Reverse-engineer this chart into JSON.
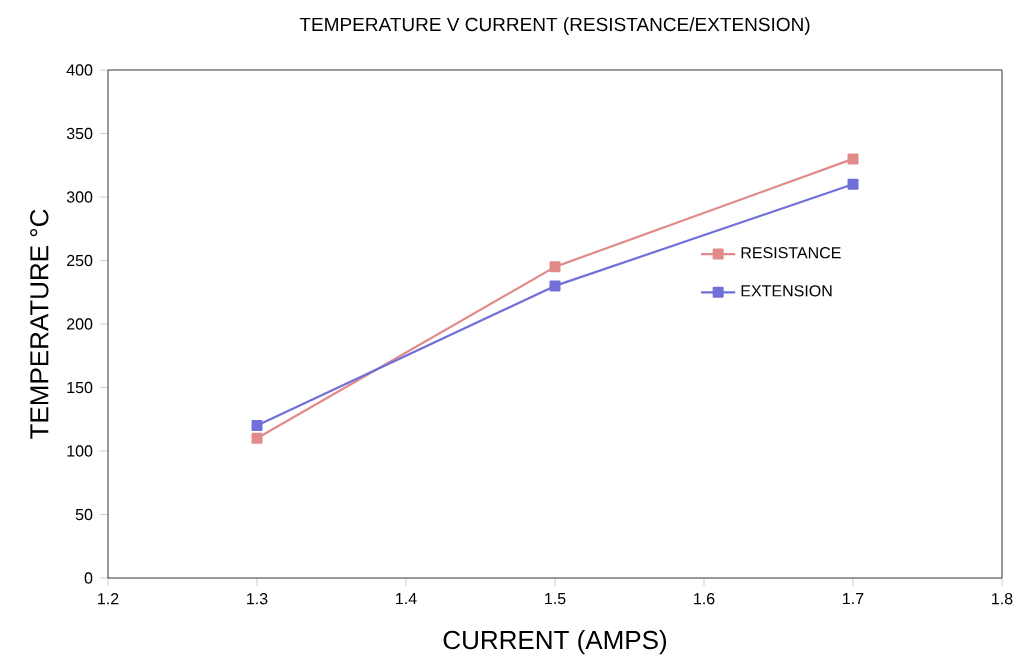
{
  "chart_data": {
    "type": "line",
    "title": "TEMPERATURE V CURRENT  (RESISTANCE/EXTENSION)",
    "xlabel": "CURRENT (AMPS)",
    "ylabel": "TEMPERATURE °C",
    "x": [
      1.3,
      1.5,
      1.7
    ],
    "series": [
      {
        "name": "RESISTANCE",
        "color": "#e08a8a",
        "values": [
          110,
          245,
          330
        ]
      },
      {
        "name": "EXTENSION",
        "color": "#7070d8",
        "values": [
          120,
          230,
          310
        ]
      }
    ],
    "xlim": [
      1.2,
      1.8
    ],
    "xticks": [
      1.2,
      1.3,
      1.4,
      1.5,
      1.6,
      1.7,
      1.8
    ],
    "ylim": [
      0,
      400
    ],
    "yticks": [
      0,
      50,
      100,
      150,
      200,
      250,
      300,
      350,
      400
    ],
    "grid": false,
    "legend": "right",
    "marker": "square",
    "line_style": "solid"
  }
}
